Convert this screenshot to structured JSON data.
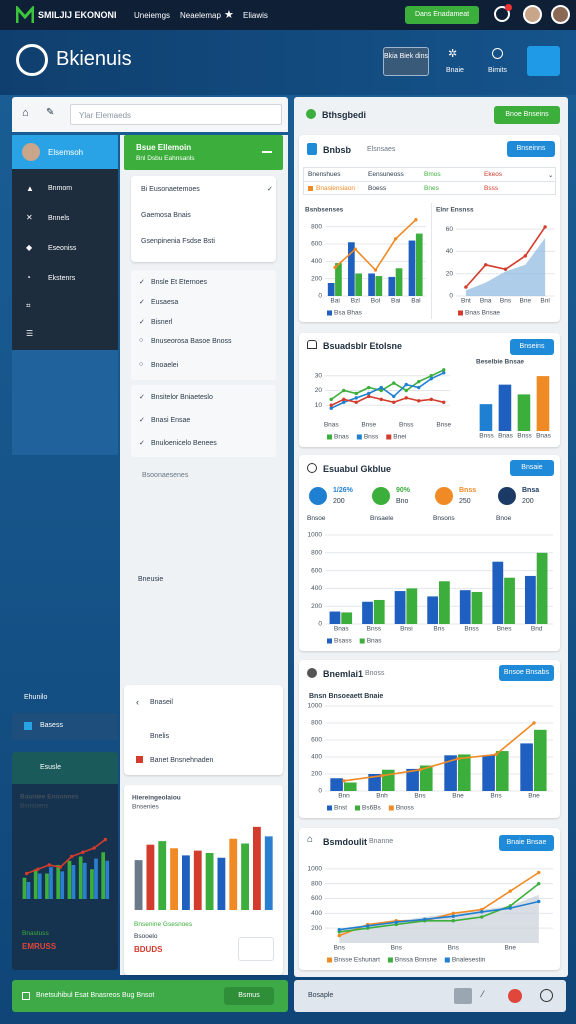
{
  "topbar": {
    "brand": "SMILJIJ EKONONI",
    "nav": [
      "Uneiemgs",
      "Neaelemap",
      "Eliawis"
    ],
    "button": "Dans Enadameat"
  },
  "header": {
    "title": "Bkienuis",
    "actions": [
      "Bkia Biek dins",
      "Bnaie",
      "Bimits"
    ]
  },
  "search": "Ylar Elemaeds",
  "sidebar": {
    "items": [
      "Elsemsoh",
      "Bnmom",
      "Bnnels",
      "Eseoniss",
      "Ekstenrs"
    ]
  },
  "menu": {
    "title": "Bsue Ellemoin",
    "subtitle": "Bnl Dsbu Eahnsanls",
    "card": [
      "Bi Eusonaetemoes",
      "Gaemosa Bnais",
      "Gsenpinenia Fsdse Bsti"
    ],
    "list": [
      "Bnsle Et Eternoes",
      "Eusaesa",
      "Bisnerl",
      "Bnuseorosa Basoe Bnoss",
      "Bnoaelei"
    ],
    "list2": [
      "Bnsitelor Bniaeteslo",
      "Bnasi Ensae",
      "Bnuloenicelo Benees"
    ],
    "extra": [
      "Bsoonaesenes",
      "Bneusie"
    ]
  },
  "bottom_left": {
    "label": "Ehunilo",
    "item": "Basess",
    "card_title": "Esusle",
    "notes": [
      "Bnastuss",
      "EMRUSS"
    ],
    "chart": {
      "title": "Bauniee Ennonnes",
      "subtitle": "Bsnsoens",
      "ylim": [
        0,
        40
      ],
      "series": [
        {
          "type": "bar",
          "color": "#3cae3c",
          "values": [
            10,
            14,
            12,
            16,
            18,
            20,
            14,
            22
          ]
        },
        {
          "type": "bar",
          "color": "#2a7fd0",
          "values": [
            8,
            12,
            15,
            13,
            16,
            17,
            19,
            18
          ]
        },
        {
          "type": "line",
          "color": "#d33b2c",
          "values": [
            12,
            14,
            16,
            15,
            20,
            22,
            24,
            28
          ]
        }
      ]
    }
  },
  "lower_card": {
    "rows": [
      "Bnaseil",
      "Bnelis",
      "Banet Bnsnehnaden"
    ],
    "footer": [
      "Bnsenine Gsesnoes",
      "Bsooelo",
      "BDUDS"
    ],
    "chart": {
      "title": "Hiereingeolaiou",
      "subtitle": "Bnsenies",
      "ylim": [
        0,
        80
      ],
      "series": [
        {
          "type": "bar",
          "colors": [
            "#6b7a8a",
            "#d33b2c",
            "#3cae3c",
            "#f08a24",
            "#1f5fbf",
            "#d33b2c",
            "#3cae3c",
            "#1f5fbf",
            "#f08a24",
            "#3cae3c",
            "#d33b2c",
            "#2a7fd0"
          ],
          "values": [
            42,
            55,
            58,
            52,
            46,
            50,
            48,
            44,
            60,
            56,
            70,
            62
          ]
        }
      ]
    }
  },
  "overview": {
    "title": "Bthsgbedi",
    "button": "Bnoe Bnseins",
    "sub_title": "Bnbsb",
    "sub_label": "Elsnsaes",
    "sub_button": "Bnseinns",
    "table": {
      "header": [
        "Bnenshues",
        "Eensuneoss",
        "Bmos",
        "Ekeos"
      ],
      "row": [
        "Bnaslensiaon",
        "Boess",
        "Bnes",
        "Bsss"
      ]
    },
    "chart_a": {
      "title": "Bsnbsenses",
      "ylim": [
        0,
        900
      ],
      "yticks": [
        800,
        600,
        400,
        200,
        0
      ],
      "categories": [
        "Bai",
        "Bzl",
        "Bol",
        "Bai",
        "Bal"
      ],
      "series": [
        {
          "name": "Bsa Bhas",
          "type": "bar",
          "color": "#1f5fbf",
          "values": [
            150,
            620,
            260,
            220,
            640
          ]
        },
        {
          "type": "bar",
          "color": "#3cae3c",
          "values": [
            380,
            260,
            230,
            320,
            720
          ]
        },
        {
          "type": "line",
          "color": "#f08a24",
          "values": [
            330,
            540,
            300,
            660,
            880
          ]
        }
      ]
    },
    "chart_b": {
      "title": "Elnr Ensnss",
      "ylim": [
        0,
        70
      ],
      "yticks": [
        60,
        40,
        20,
        0
      ],
      "categories": [
        "Bnt",
        "Bna",
        "Bns",
        "Bne",
        "Bnl"
      ],
      "series": [
        {
          "type": "area",
          "color": "#8ab8e0",
          "values": [
            5,
            12,
            22,
            28,
            52
          ]
        },
        {
          "name": "Bnas Bnsae",
          "type": "line",
          "color": "#d33b2c",
          "values": [
            8,
            28,
            24,
            36,
            62
          ]
        }
      ]
    }
  },
  "trend": {
    "title": "Bsuadsblr Etolsne",
    "button": "Bnseins",
    "line_chart": {
      "ylim": [
        0,
        40
      ],
      "yticks": [
        30,
        20,
        10
      ],
      "categories": [
        "Bnas",
        null,
        null,
        "Bnse",
        null,
        null,
        "Bnss",
        null,
        null,
        "Bnse"
      ],
      "series": [
        {
          "name": "Bnas",
          "type": "line",
          "color": "#3cae3c",
          "values": [
            14,
            20,
            18,
            22,
            20,
            25,
            20,
            26,
            30,
            34
          ]
        },
        {
          "name": "Bnss",
          "type": "line",
          "color": "#1f7fd0",
          "values": [
            8,
            12,
            15,
            18,
            22,
            16,
            24,
            22,
            28,
            32
          ]
        },
        {
          "name": "Bnei",
          "type": "line",
          "color": "#d33b2c",
          "values": [
            10,
            14,
            12,
            16,
            14,
            12,
            15,
            13,
            14,
            12
          ]
        }
      ]
    },
    "bar_chart": {
      "title": "Beselbie Bnsae",
      "ylim": [
        0,
        50
      ],
      "categories": [
        "Bnss",
        "Bnas",
        "Bnss",
        "Bnas"
      ],
      "series": [
        {
          "type": "bar",
          "colors": [
            "#1f7fd0",
            "#1f5fbf",
            "#3cae3c",
            "#f08a24"
          ],
          "values": [
            22,
            38,
            30,
            45
          ]
        }
      ]
    }
  },
  "summary": {
    "title": "Esuabul Gkblue",
    "button": "Bnsaie",
    "kpis": [
      {
        "label": "Bnsoe",
        "value": "1/26%",
        "sub": "200",
        "color": "#1f7fd0"
      },
      {
        "label": "Bnsaele",
        "value": "90%",
        "sub": "Bno",
        "color": "#3cae3c"
      },
      {
        "label": "Bnsons",
        "value": "Bnss",
        "sub": "250",
        "color": "#f08a24"
      },
      {
        "label": "Bnoe",
        "value": "Bnsa",
        "sub": "200",
        "color": "#1b3a66"
      }
    ],
    "chart": {
      "ylim": [
        0,
        1000
      ],
      "yticks": [
        1000,
        800,
        600,
        400,
        200,
        0
      ],
      "categories": [
        "Bnas",
        "Bnss",
        "Bnsi",
        "Bns",
        "Bnss",
        "Bnes",
        "Bnd"
      ],
      "series": [
        {
          "name": "Bsass",
          "type": "bar",
          "color": "#1f5fbf",
          "values": [
            140,
            250,
            370,
            310,
            380,
            700,
            540
          ]
        },
        {
          "name": "Bnas",
          "type": "bar",
          "color": "#3cae3c",
          "values": [
            130,
            270,
            400,
            480,
            360,
            520,
            800
          ]
        }
      ]
    }
  },
  "metrics": {
    "title": "Bnemlai1",
    "subtitle": "Bnoss",
    "button": "Bnsoe Bnsabs",
    "chart_title": "Bnsn Bnsoeaett Bnaie",
    "chart": {
      "ylim": [
        0,
        1000
      ],
      "yticks": [
        1000,
        800,
        600,
        400,
        200,
        0
      ],
      "categories": [
        "Bnn",
        "Bnh",
        "Bns",
        "Bne",
        "Bns",
        "Bne"
      ],
      "series": [
        {
          "name": "Bnst",
          "type": "bar",
          "color": "#1f5fbf",
          "values": [
            150,
            200,
            260,
            420,
            420,
            560
          ]
        },
        {
          "name": "Bs6Bs",
          "type": "bar",
          "color": "#3cae3c",
          "values": [
            100,
            250,
            300,
            430,
            470,
            720
          ]
        },
        {
          "name": "Bnoss",
          "type": "line",
          "color": "#f08a24",
          "values": [
            120,
            180,
            250,
            380,
            430,
            800
          ]
        }
      ]
    }
  },
  "growth": {
    "title": "Bsmdoulit",
    "subtitle": "Bnanne",
    "button": "Bnaie Bnsae",
    "chart": {
      "ylim": [
        0,
        1200
      ],
      "yticks": [
        1000,
        800,
        600,
        400,
        200
      ],
      "categories": [
        "Bns",
        null,
        "Bns",
        null,
        "Bns",
        null,
        "Bne",
        null
      ],
      "series": [
        {
          "type": "area",
          "color": "#c9d0d8",
          "values": [
            200,
            250,
            300,
            350,
            400,
            450,
            500,
            650
          ]
        },
        {
          "name": "Bnsse Eshunart",
          "type": "line",
          "color": "#f08a24",
          "values": [
            100,
            250,
            300,
            300,
            400,
            450,
            700,
            950
          ]
        },
        {
          "name": "Bnssa Bnnsne",
          "type": "line",
          "color": "#3cae3c",
          "values": [
            150,
            200,
            250,
            300,
            300,
            350,
            500,
            800
          ]
        },
        {
          "name": "Bnalesestin",
          "type": "line",
          "color": "#1f7fd0",
          "values": [
            180,
            230,
            280,
            320,
            360,
            420,
            470,
            560
          ]
        }
      ]
    }
  },
  "footer": {
    "left": "Bnetsuhibul Esat Bnasreos Bug Bnsot",
    "button": "Bsmus",
    "right": "Bosaple"
  }
}
